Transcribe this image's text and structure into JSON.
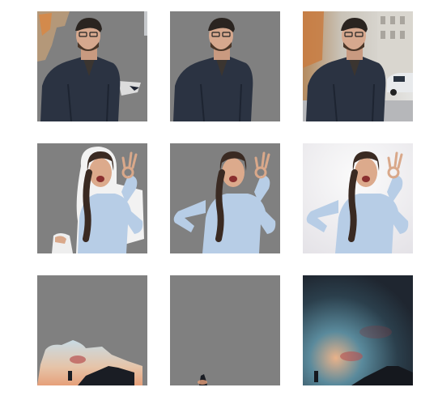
{
  "grid": {
    "rows": [
      {
        "subject": "man",
        "panels": [
          {
            "variant": "partial-mask-result"
          },
          {
            "variant": "clean-mask-result"
          },
          {
            "variant": "original-photo"
          }
        ]
      },
      {
        "subject": "woman",
        "panels": [
          {
            "variant": "partial-mask-result"
          },
          {
            "variant": "clean-mask-result"
          },
          {
            "variant": "original-photo"
          }
        ]
      },
      {
        "subject": "sky",
        "panels": [
          {
            "variant": "partial-mask-result"
          },
          {
            "variant": "clean-mask-result"
          },
          {
            "variant": "original-photo"
          }
        ]
      }
    ]
  },
  "colors": {
    "page_background": "#ffffff",
    "mask_gray": "#808080",
    "jacket": "#2b3342",
    "hair": "#3a2a22",
    "skin": "#d9a88a",
    "shirt": "#b7cde6",
    "night_sky_top": "#1f2630",
    "night_sky_glow": "#5a8a9c",
    "sunset": "#e6a07a"
  }
}
